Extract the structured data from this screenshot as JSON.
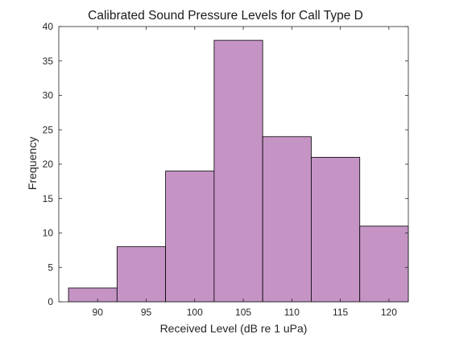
{
  "chart_data": {
    "type": "bar",
    "subtype": "histogram",
    "title": "Calibrated Sound Pressure Levels for Call Type D",
    "xlabel": "Received Level (dB re 1 uPa)",
    "ylabel": "Frequency",
    "xlim": [
      86,
      122
    ],
    "ylim": [
      0,
      40
    ],
    "xticks": [
      90,
      95,
      100,
      105,
      110,
      115,
      120
    ],
    "yticks": [
      0,
      5,
      10,
      15,
      20,
      25,
      30,
      35,
      40
    ],
    "bin_edges": [
      87,
      92,
      97,
      102,
      107,
      112,
      117,
      122
    ],
    "bins": [
      {
        "x0": 87,
        "x1": 92,
        "value": 2
      },
      {
        "x0": 92,
        "x1": 97,
        "value": 8
      },
      {
        "x0": 97,
        "x1": 102,
        "value": 19
      },
      {
        "x0": 102,
        "x1": 107,
        "value": 38
      },
      {
        "x0": 107,
        "x1": 112,
        "value": 24
      },
      {
        "x0": 112,
        "x1": 117,
        "value": 21
      },
      {
        "x0": 117,
        "x1": 122,
        "value": 11
      }
    ],
    "grid": false,
    "bar_color": "#c594c5",
    "edge_color": "#000000"
  }
}
